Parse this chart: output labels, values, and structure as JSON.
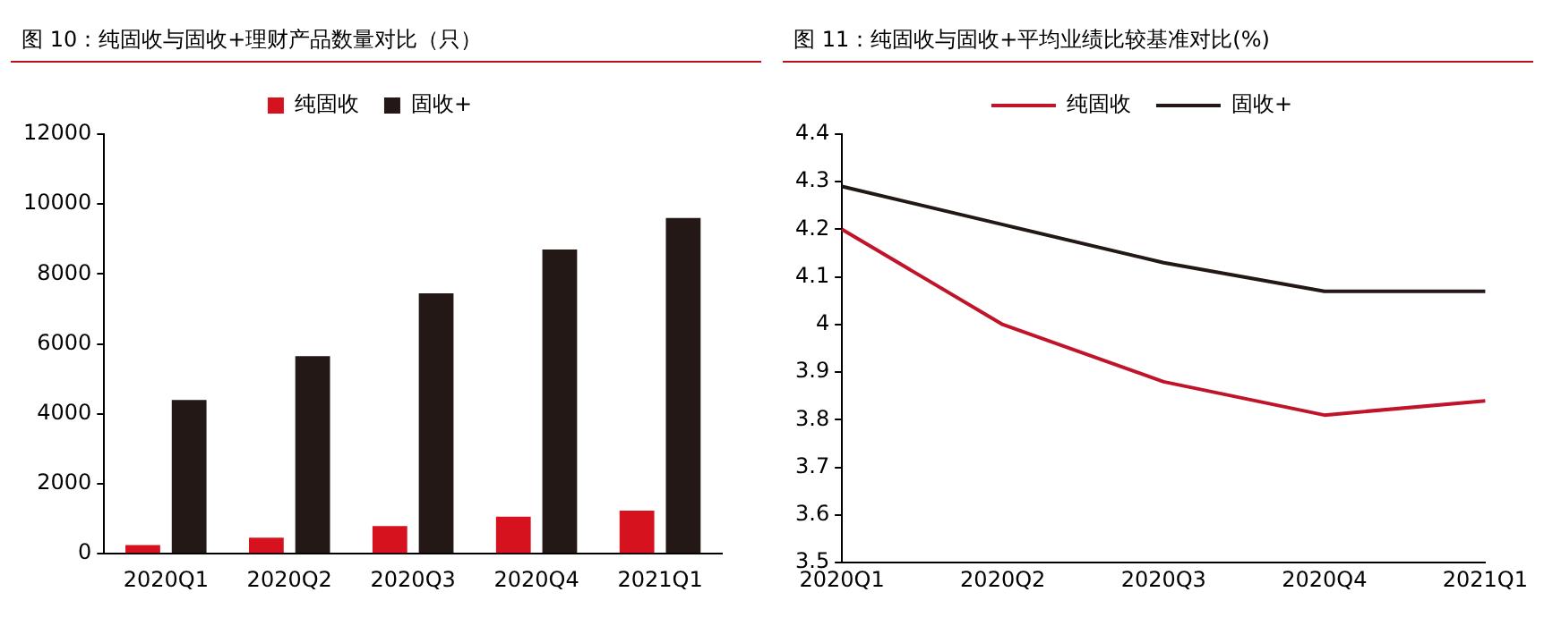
{
  "chart_data": [
    {
      "type": "bar",
      "title": "图 10：纯固收与固收+理财产品数量对比（只）",
      "categories": [
        "2020Q1",
        "2020Q2",
        "2020Q3",
        "2020Q4",
        "2021Q1"
      ],
      "series": [
        {
          "name": "纯固收",
          "color": "#d7121f",
          "values": [
            250,
            460,
            790,
            1060,
            1230
          ]
        },
        {
          "name": "固收+",
          "color": "#231815",
          "values": [
            4400,
            5650,
            7450,
            8700,
            9600
          ]
        }
      ],
      "ylim": [
        0,
        12000
      ],
      "yticks": [
        0,
        2000,
        4000,
        6000,
        8000,
        10000,
        12000
      ],
      "grid": false,
      "legend": "top"
    },
    {
      "type": "line",
      "title": "图 11：纯固收与固收+平均业绩比较基准对比(%)",
      "categories": [
        "2020Q1",
        "2020Q2",
        "2020Q3",
        "2020Q4",
        "2021Q1"
      ],
      "series": [
        {
          "name": "纯固收",
          "color": "#c0142a",
          "values": [
            4.2,
            4.0,
            3.88,
            3.81,
            3.84
          ]
        },
        {
          "name": "固收+",
          "color": "#231815",
          "values": [
            4.29,
            4.21,
            4.13,
            4.07,
            4.07
          ]
        }
      ],
      "ylim": [
        3.5,
        4.4
      ],
      "yticks": [
        3.5,
        3.6,
        3.7,
        3.8,
        3.9,
        4,
        4.1,
        4.2,
        4.3,
        4.4
      ],
      "grid": false,
      "legend": "top",
      "marker": "none"
    }
  ]
}
